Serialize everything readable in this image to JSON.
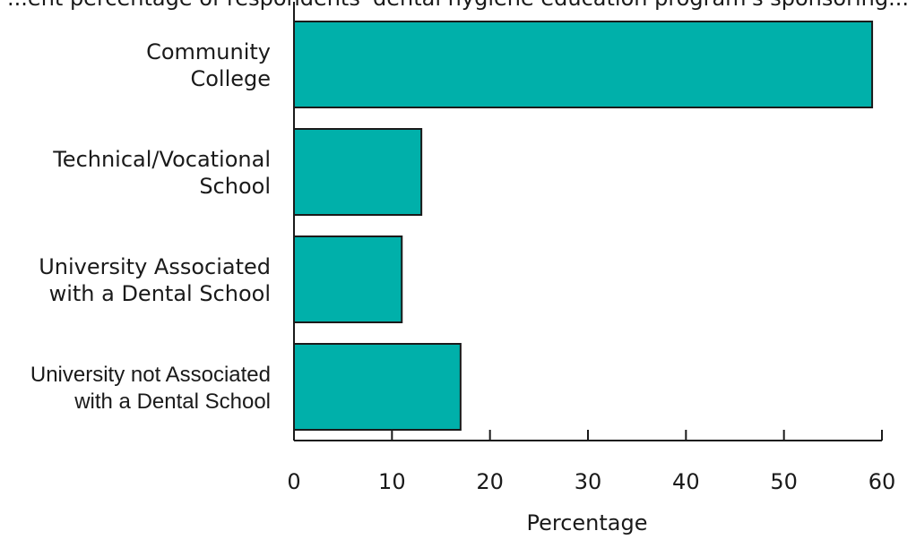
{
  "chart_data": {
    "type": "bar",
    "orientation": "horizontal",
    "title": "...ent percentage of respondents' dental hygiene education program's sponsoring...",
    "categories": [
      [
        "Community",
        "College"
      ],
      [
        "Technical/Vocational",
        "School"
      ],
      [
        "University Associated",
        "with a Dental School"
      ],
      [
        "University not Associated",
        "with a Dental School"
      ]
    ],
    "values": [
      59,
      13,
      11,
      17
    ],
    "xlabel": "Percentage",
    "ylabel": "",
    "xlim": [
      0,
      60
    ],
    "xticks": [
      "0",
      "10",
      "20",
      "30",
      "40",
      "50",
      "60"
    ],
    "grid": false,
    "legend": "none",
    "colors": {
      "bar": "#00b0aa",
      "bar_stroke": "#1a1a1a",
      "axis": "#1a1a1a"
    }
  }
}
